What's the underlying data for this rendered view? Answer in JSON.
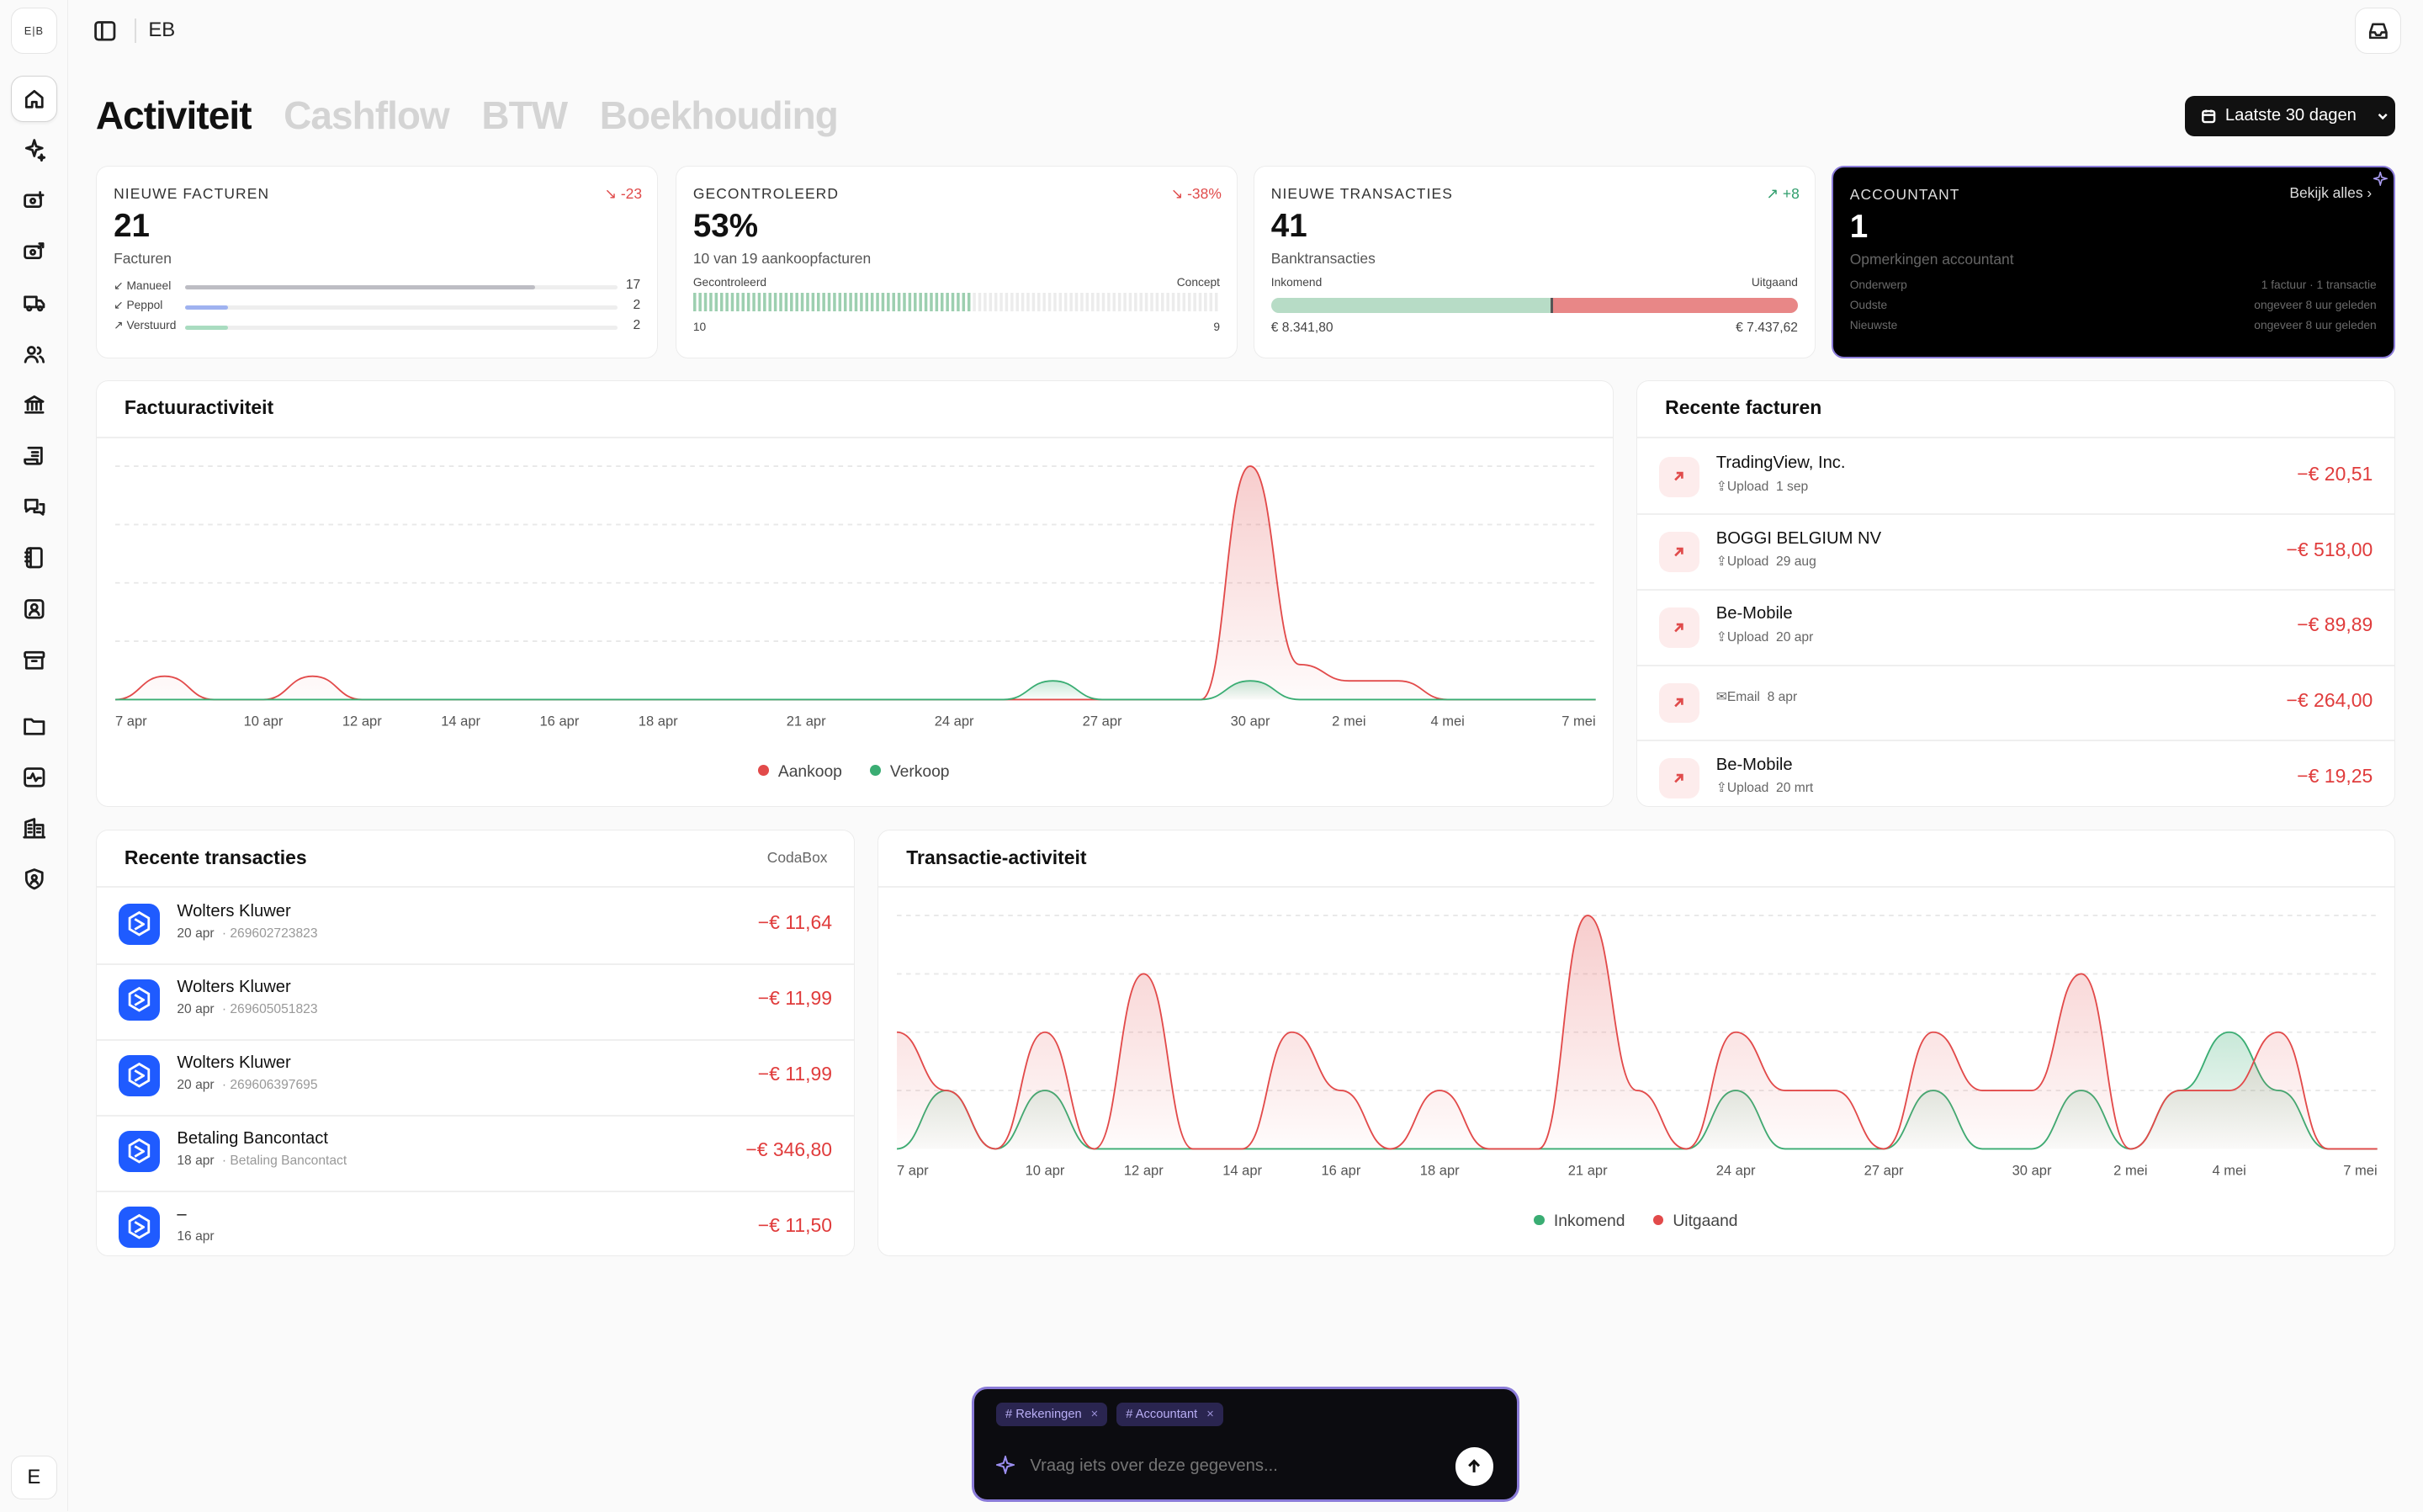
{
  "app": {
    "logo_text": "E|B",
    "org_name": "EB",
    "user_initial": "E"
  },
  "colors": {
    "aankoop": "#e24a4a",
    "verkoop": "#3aad73",
    "accent": "#8a7bd8"
  },
  "sidebar": {
    "items": [
      {
        "icon": "home-icon"
      },
      {
        "icon": "sparkle-icon"
      },
      {
        "icon": "invoice-in-icon"
      },
      {
        "icon": "invoice-out-icon"
      },
      {
        "icon": "truck-icon"
      },
      {
        "icon": "users-icon"
      },
      {
        "icon": "bank-icon"
      },
      {
        "icon": "ledger-icon"
      },
      {
        "icon": "chat-icon"
      },
      {
        "icon": "book-icon"
      },
      {
        "icon": "contact-icon"
      },
      {
        "icon": "archive-icon"
      },
      {
        "icon": "folder-icon"
      },
      {
        "icon": "activity-icon"
      },
      {
        "icon": "buildings-icon"
      },
      {
        "icon": "shield-icon"
      }
    ]
  },
  "tabs": [
    "Activiteit",
    "Cashflow",
    "BTW",
    "Boekhouding"
  ],
  "date_range": {
    "label": "Laatste 30 dagen"
  },
  "kpis": {
    "invoices": {
      "label": "NIEUWE FACTUREN",
      "delta": "-23",
      "value": "21",
      "sub": "Facturen",
      "rows": [
        {
          "label": "Manueel",
          "count": "17",
          "fraction": 0.81,
          "color": "#bdbdc4"
        },
        {
          "label": "Peppol",
          "count": "2",
          "fraction": 0.1,
          "color": "#9fb2f0"
        },
        {
          "label": "Verstuurd",
          "count": "2",
          "fraction": 0.1,
          "color": "#a9dcc0"
        }
      ]
    },
    "checked": {
      "label": "GECONTROLEERD",
      "delta": "-38%",
      "value": "53%",
      "sub": "10 van 19 aankoopfacturen",
      "left_label": "Gecontroleerd",
      "right_label": "Concept",
      "left_count": "10",
      "right_count": "9",
      "checked_fraction": 0.53
    },
    "transactions": {
      "label": "NIEUWE TRANSACTIES",
      "delta": "+8",
      "value": "41",
      "sub": "Banktransacties",
      "in_label": "Inkomend",
      "out_label": "Uitgaand",
      "in_amount": "€ 8.341,80",
      "out_amount": "€ 7.437,62",
      "in_fraction": 0.53
    },
    "accountant": {
      "label": "ACCOUNTANT",
      "link": "Bekijk alles",
      "value": "1",
      "sub": "Opmerkingen accountant",
      "rows": [
        {
          "label": "Onderwerp",
          "value": "1 factuur · 1 transactie"
        },
        {
          "label": "Oudste",
          "value": "ongeveer 8 uur geleden"
        },
        {
          "label": "Nieuwste",
          "value": "ongeveer 8 uur geleden"
        }
      ]
    }
  },
  "invoice_chart": {
    "title": "Factuuractiviteit",
    "legend": [
      "Aankoop",
      "Verkoop"
    ]
  },
  "transaction_chart": {
    "title": "Transactie-activiteit",
    "legend": [
      "Inkomend",
      "Uitgaand"
    ]
  },
  "chart_data": [
    {
      "type": "area",
      "title": "Factuuractiviteit",
      "x": [
        "7 apr",
        "8 apr",
        "9 apr",
        "10 apr",
        "11 apr",
        "12 apr",
        "13 apr",
        "14 apr",
        "15 apr",
        "16 apr",
        "17 apr",
        "18 apr",
        "19 apr",
        "20 apr",
        "21 apr",
        "22 apr",
        "23 apr",
        "24 apr",
        "25 apr",
        "26 apr",
        "27 apr",
        "28 apr",
        "29 apr",
        "30 apr",
        "1 mei",
        "2 mei",
        "3 mei",
        "4 mei",
        "5 mei",
        "6 mei",
        "7 mei"
      ],
      "x_ticks": [
        "7 apr",
        "10 apr",
        "12 apr",
        "14 apr",
        "16 apr",
        "18 apr",
        "21 apr",
        "24 apr",
        "27 apr",
        "30 apr",
        "2 mei",
        "4 mei",
        "7 mei"
      ],
      "series": [
        {
          "name": "Aankoop",
          "values": [
            0,
            0.1,
            0,
            0,
            0.1,
            0,
            0,
            0,
            0,
            0,
            0,
            0,
            0,
            0,
            0,
            0,
            0,
            0,
            0,
            0,
            0,
            0,
            0,
            1,
            0.15,
            0.08,
            0.08,
            0,
            0,
            0,
            0
          ]
        },
        {
          "name": "Verkoop",
          "values": [
            0,
            0,
            0,
            0,
            0,
            0,
            0,
            0,
            0,
            0,
            0,
            0,
            0,
            0,
            0,
            0,
            0,
            0,
            0,
            0.08,
            0,
            0,
            0,
            0.08,
            0,
            0,
            0,
            0,
            0,
            0,
            0
          ]
        }
      ],
      "ylim": [
        0,
        1
      ]
    },
    {
      "type": "area",
      "title": "Transactie-activiteit",
      "x": [
        "7 apr",
        "8 apr",
        "9 apr",
        "10 apr",
        "11 apr",
        "12 apr",
        "13 apr",
        "14 apr",
        "15 apr",
        "16 apr",
        "17 apr",
        "18 apr",
        "19 apr",
        "20 apr",
        "21 apr",
        "22 apr",
        "23 apr",
        "24 apr",
        "25 apr",
        "26 apr",
        "27 apr",
        "28 apr",
        "29 apr",
        "30 apr",
        "1 mei",
        "2 mei",
        "3 mei",
        "4 mei",
        "5 mei",
        "6 mei",
        "7 mei"
      ],
      "x_ticks": [
        "7 apr",
        "10 apr",
        "12 apr",
        "14 apr",
        "16 apr",
        "18 apr",
        "21 apr",
        "24 apr",
        "27 apr",
        "30 apr",
        "2 mei",
        "4 mei",
        "7 mei"
      ],
      "series": [
        {
          "name": "Inkomend",
          "values": [
            0,
            0.25,
            0,
            0.25,
            0,
            0,
            0,
            0,
            0,
            0,
            0,
            0,
            0,
            0,
            0,
            0,
            0,
            0.25,
            0,
            0,
            0,
            0.25,
            0,
            0,
            0.25,
            0,
            0.25,
            0.5,
            0.25,
            0,
            0
          ]
        },
        {
          "name": "Uitgaand",
          "values": [
            0.5,
            0.25,
            0,
            0.5,
            0,
            0.75,
            0,
            0,
            0.5,
            0.25,
            0,
            0.25,
            0,
            0,
            1,
            0.25,
            0,
            0.5,
            0.25,
            0.25,
            0,
            0.5,
            0.25,
            0.25,
            0.75,
            0,
            0.25,
            0.25,
            0.5,
            0,
            0
          ]
        }
      ],
      "ylim": [
        0,
        1
      ]
    }
  ],
  "recent_invoices": {
    "title": "Recente facturen",
    "items": [
      {
        "name": "TradingView, Inc.",
        "source": "Upload",
        "date": "1 sep",
        "amount": "−€ 20,51"
      },
      {
        "name": "BOGGI BELGIUM NV",
        "source": "Upload",
        "date": "29 aug",
        "amount": "−€ 518,00"
      },
      {
        "name": "Be-Mobile",
        "source": "Upload",
        "date": "20 apr",
        "amount": "−€ 89,89"
      },
      {
        "name": "",
        "source": "Email",
        "date": "8 apr",
        "amount": "−€ 264,00"
      },
      {
        "name": "Be-Mobile",
        "source": "Upload",
        "date": "20 mrt",
        "amount": "−€ 19,25"
      }
    ]
  },
  "recent_transactions": {
    "title": "Recente transacties",
    "provider": "CodaBox",
    "items": [
      {
        "name": "Wolters Kluwer",
        "date": "20 apr",
        "ref": "· 269602723823",
        "amount": "−€ 11,64"
      },
      {
        "name": "Wolters Kluwer",
        "date": "20 apr",
        "ref": "· 269605051823",
        "amount": "−€ 11,99"
      },
      {
        "name": "Wolters Kluwer",
        "date": "20 apr",
        "ref": "· 269606397695",
        "amount": "−€ 11,99"
      },
      {
        "name": "Betaling Bancontact",
        "date": "18 apr",
        "ref": "· Betaling Bancontact",
        "amount": "−€ 346,80"
      },
      {
        "name": "–",
        "date": "16 apr",
        "ref": "",
        "amount": "−€ 11,50"
      }
    ]
  },
  "chat": {
    "chips": [
      "# Rekeningen",
      "# Accountant"
    ],
    "placeholder": "Vraag iets over deze gegevens..."
  }
}
